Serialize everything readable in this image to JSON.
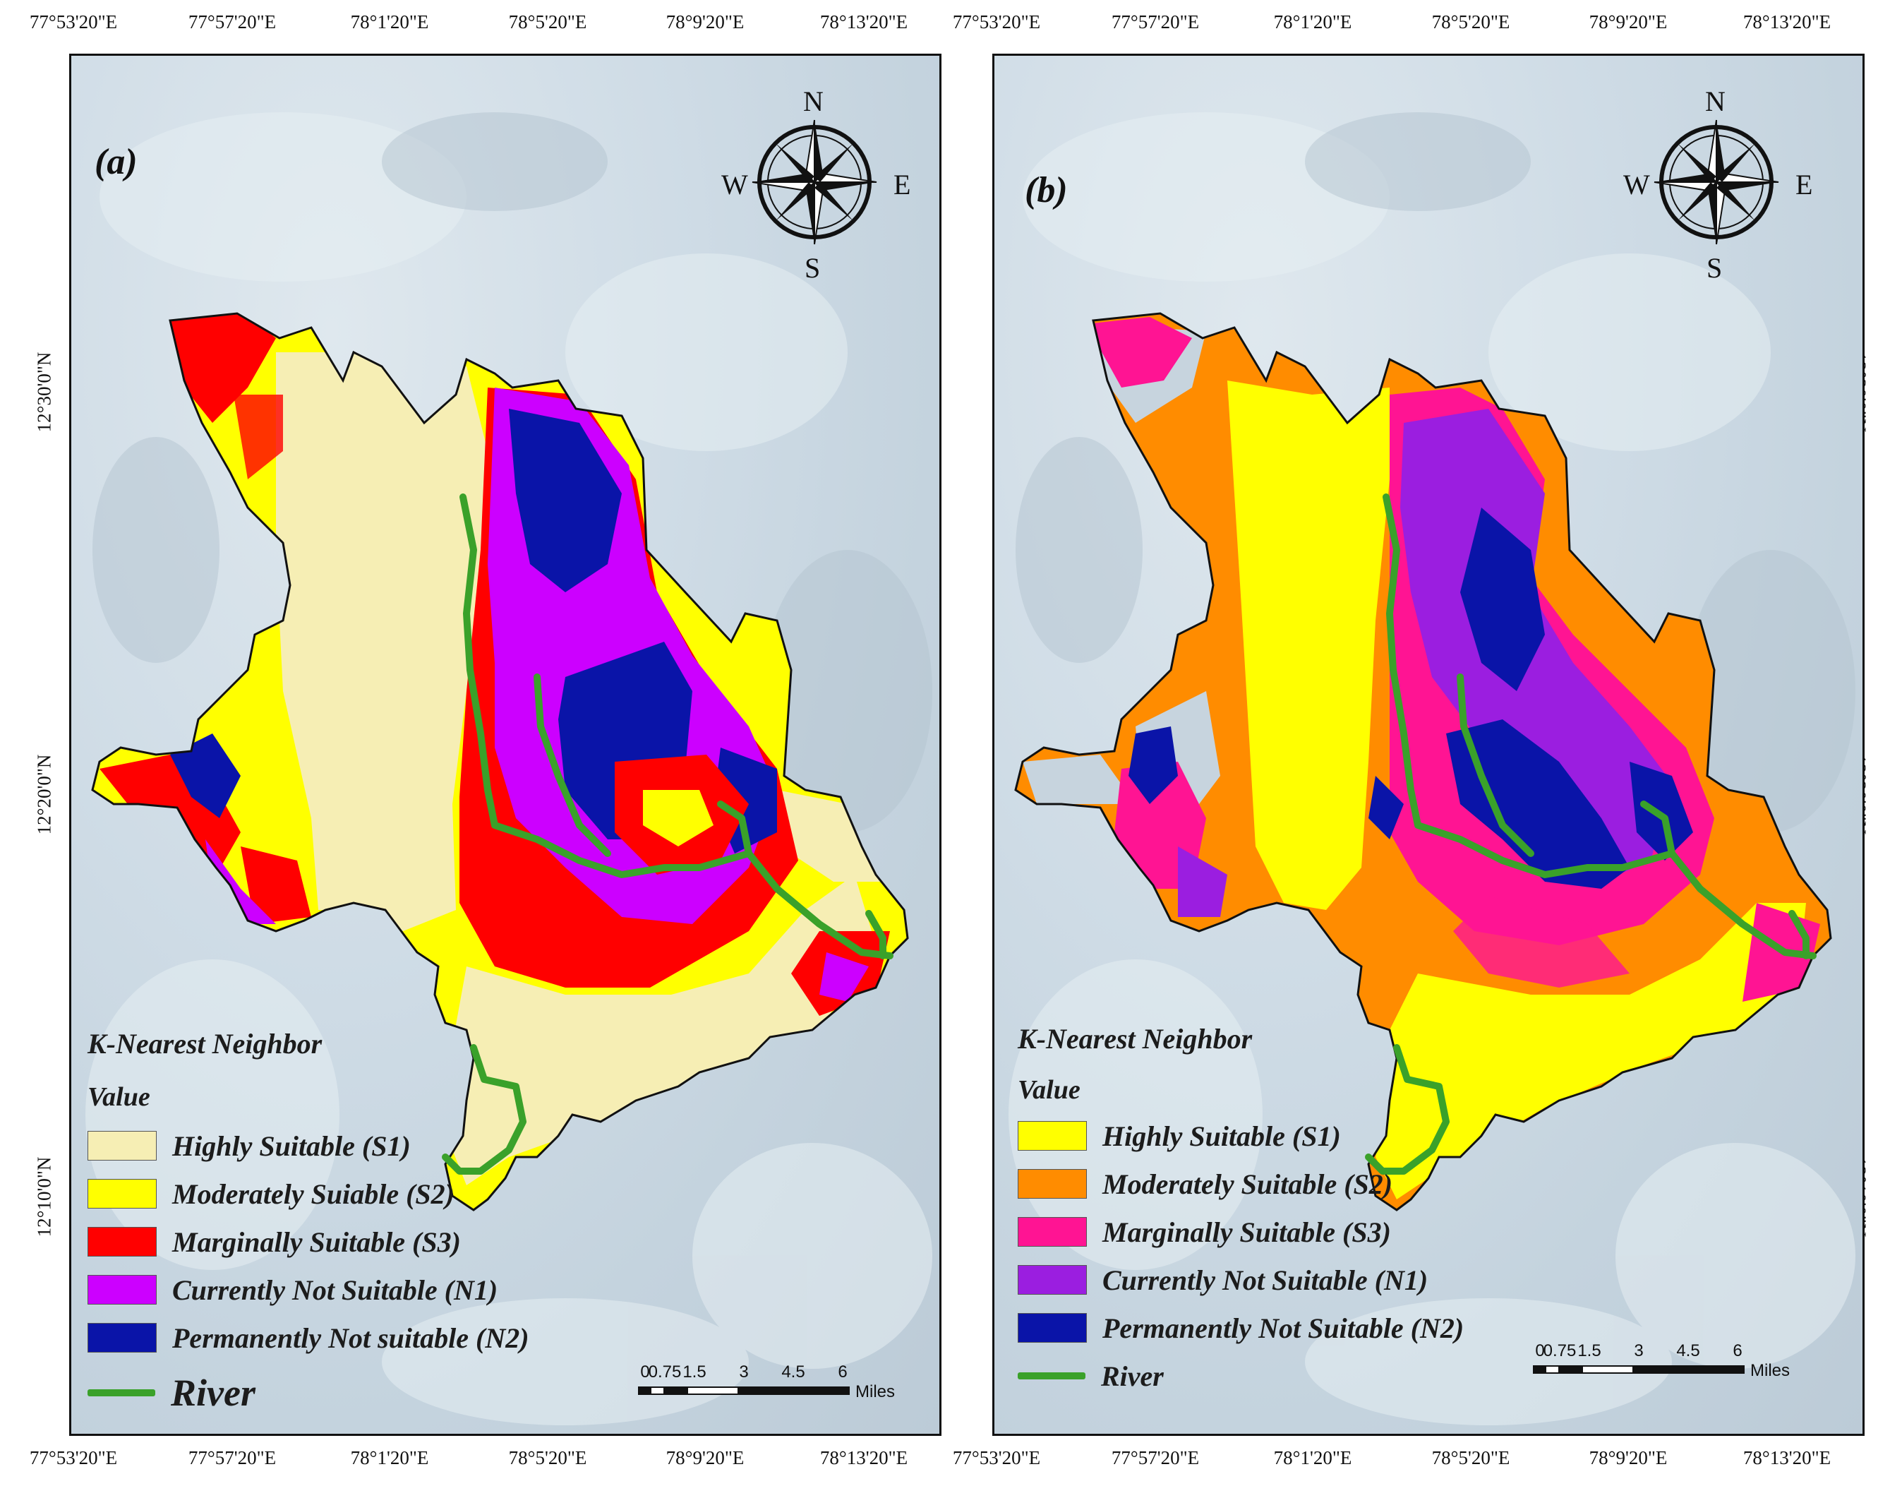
{
  "colors": {
    "background_map": "#c9d7e1",
    "river": "#3aa12a",
    "outline": "#111111"
  },
  "lon_ticks": [
    "77°53'20\"E",
    "77°57'20\"E",
    "78°1'20\"E",
    "78°5'20\"E",
    "78°9'20\"E",
    "78°13'20\"E"
  ],
  "lat_ticks": [
    "12°30'0\"N",
    "12°20'0\"N",
    "12°10'0\"N"
  ],
  "compass": {
    "n": "N",
    "s": "S",
    "e": "E",
    "w": "W",
    "icon": "compass-rose-icon"
  },
  "scale_bar": {
    "labels": [
      "0",
      "0.75",
      "1.5",
      "3",
      "4.5",
      "6"
    ],
    "units": "Miles"
  },
  "panels": [
    {
      "label": "(a)",
      "legend_title": "K-Nearest Neighbor",
      "legend_subtitle": "Value",
      "classes": [
        {
          "label": "Highly Suitable (S1)",
          "color": "#f6eeb4"
        },
        {
          "label": "Moderately Suiable (S2)",
          "color": "#ffff00"
        },
        {
          "label": "Marginally Suitable (S3)",
          "color": "#ff0000"
        },
        {
          "label": "Currently Not Suitable (N1)",
          "color": "#cc00ff"
        },
        {
          "label": "Permanently Not suitable  (N2)",
          "color": "#0a14a8"
        }
      ],
      "river_label": "River"
    },
    {
      "label": "(b)",
      "legend_title": "K-Nearest Neighbor",
      "legend_subtitle": "Value",
      "classes": [
        {
          "label": "Highly Suitable (S1)",
          "color": "#ffff00"
        },
        {
          "label": "Moderately Suitable (S2)",
          "color": "#ff8c00"
        },
        {
          "label": "Marginally Suitable (S3)",
          "color": "#ff1493"
        },
        {
          "label": "Currently Not Suitable (N1)",
          "color": "#9b1ee0"
        },
        {
          "label": "Permanently Not Suitable (N2)",
          "color": "#0a14a8"
        }
      ],
      "river_label": "River"
    }
  ]
}
